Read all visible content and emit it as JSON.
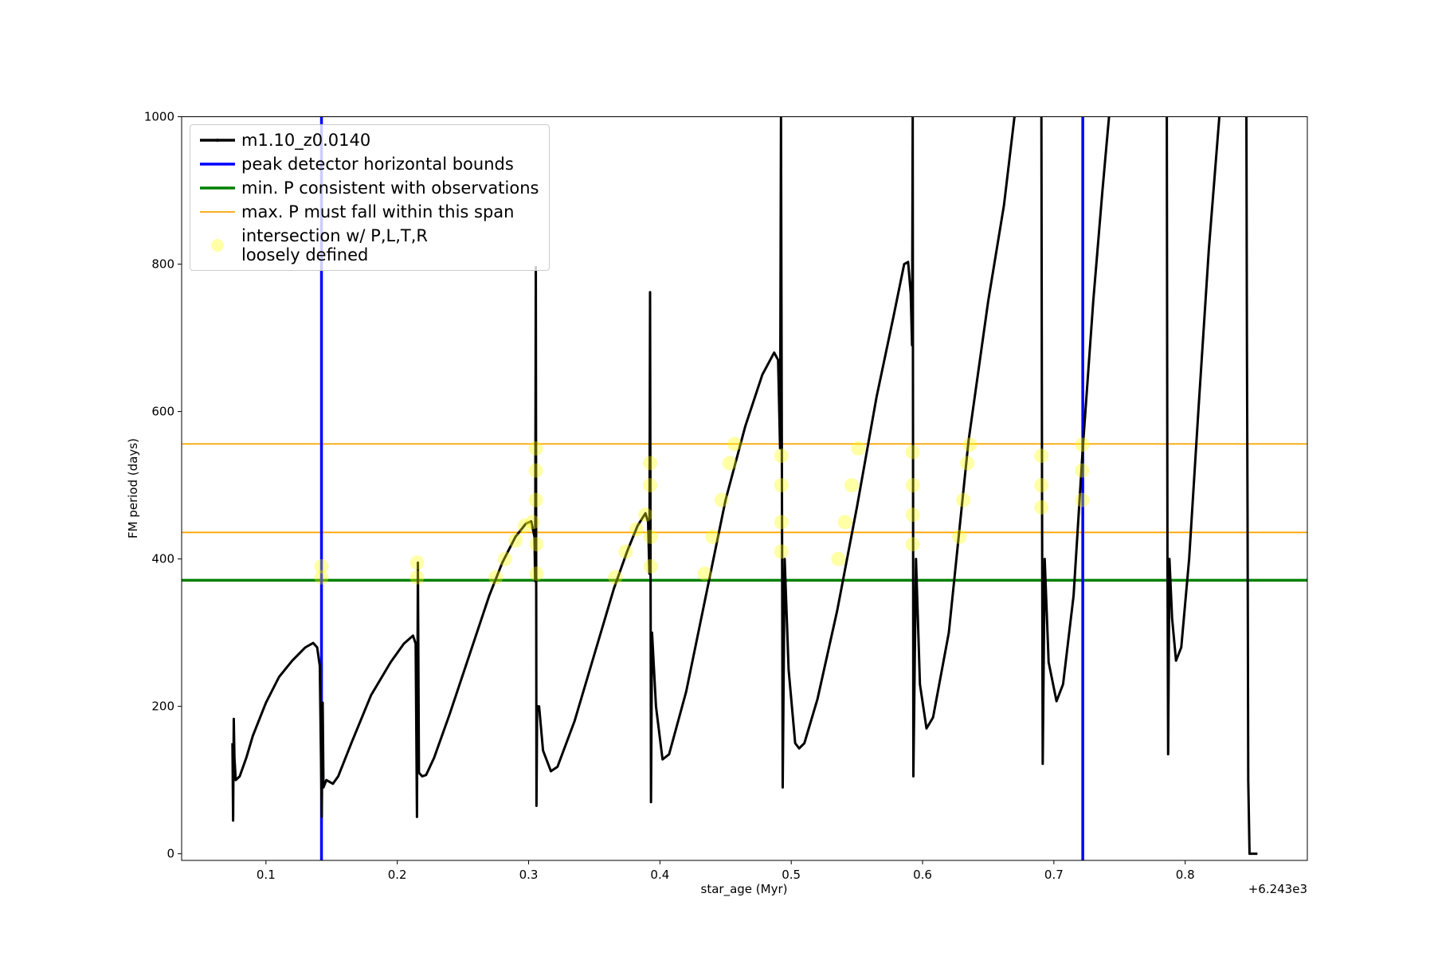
{
  "chart_data": {
    "type": "line",
    "xlabel": "star_age (Myr)",
    "ylabel": "FM period (days)",
    "x_offset_label": "+6.243e3",
    "xlim": [
      0.0358,
      0.893
    ],
    "ylim": [
      -9,
      1000
    ],
    "xticks": [
      0.1,
      0.2,
      0.3,
      0.4,
      0.5,
      0.6,
      0.7,
      0.8
    ],
    "yticks": [
      0,
      200,
      400,
      600,
      800,
      1000
    ],
    "legend": "upper left",
    "series": [
      {
        "name": "m1.10_z0.0140",
        "kind": "line",
        "color": "#000000",
        "x": [
          0.0745,
          0.075,
          0.0755,
          0.076,
          0.077,
          0.08,
          0.085,
          0.09,
          0.1,
          0.11,
          0.12,
          0.13,
          0.136,
          0.139,
          0.141,
          0.142,
          0.1425,
          0.1432,
          0.1438,
          0.146,
          0.151,
          0.155,
          0.165,
          0.18,
          0.195,
          0.205,
          0.212,
          0.214,
          0.215,
          0.2157,
          0.2165,
          0.219,
          0.222,
          0.228,
          0.24,
          0.255,
          0.27,
          0.28,
          0.29,
          0.298,
          0.302,
          0.3045,
          0.305,
          0.3055,
          0.306,
          0.3065,
          0.308,
          0.311,
          0.317,
          0.322,
          0.335,
          0.35,
          0.365,
          0.375,
          0.383,
          0.389,
          0.391,
          0.392,
          0.3925,
          0.3932,
          0.394,
          0.397,
          0.402,
          0.407,
          0.42,
          0.435,
          0.45,
          0.465,
          0.478,
          0.487,
          0.49,
          0.4915,
          0.4922,
          0.4935,
          0.495,
          0.498,
          0.503,
          0.506,
          0.51,
          0.52,
          0.535,
          0.55,
          0.565,
          0.578,
          0.586,
          0.589,
          0.591,
          0.592,
          0.5925,
          0.593,
          0.595,
          0.598,
          0.603,
          0.608,
          0.62,
          0.635,
          0.65,
          0.662,
          0.67,
          0.68,
          0.6905,
          0.691,
          0.6915,
          0.693,
          0.696,
          0.702,
          0.707,
          0.715,
          0.722,
          0.73,
          0.737,
          0.742,
          0.764,
          0.786,
          0.7865,
          0.787,
          0.788,
          0.79,
          0.793,
          0.797,
          0.803,
          0.81,
          0.818,
          0.826,
          0.836,
          0.8466,
          0.847,
          0.8475,
          0.848,
          0.849,
          0.852,
          0.855
        ],
        "values": [
          150,
          45,
          183,
          130,
          100,
          105,
          130,
          160,
          205,
          240,
          262,
          280,
          286,
          280,
          255,
          120,
          50,
          205,
          90,
          100,
          95,
          105,
          150,
          215,
          260,
          285,
          296,
          285,
          50,
          395,
          110,
          105,
          107,
          130,
          190,
          270,
          350,
          395,
          430,
          448,
          451,
          430,
          370,
          796,
          65,
          200,
          200,
          140,
          112,
          118,
          180,
          270,
          360,
          410,
          445,
          462,
          450,
          380,
          762,
          70,
          300,
          200,
          128,
          135,
          220,
          350,
          480,
          580,
          650,
          680,
          670,
          550,
          1000,
          90,
          400,
          250,
          150,
          143,
          150,
          210,
          330,
          470,
          620,
          730,
          800,
          803,
          760,
          690,
          1000,
          105,
          400,
          230,
          170,
          185,
          300,
          560,
          750,
          880,
          1000,
          null,
          1000,
          470,
          122,
          400,
          260,
          207,
          230,
          350,
          550,
          750,
          900,
          1000,
          null,
          1000,
          400,
          135,
          400,
          320,
          262,
          280,
          400,
          600,
          820,
          1000,
          null,
          1000,
          700,
          450,
          100,
          0,
          0,
          0
        ]
      },
      {
        "name": "peak detector horizontal bounds",
        "kind": "vline",
        "color": "#0000ff",
        "x": [
          0.1423,
          0.722
        ]
      },
      {
        "name": "min. P consistent with observations",
        "kind": "hline",
        "color": "#008000",
        "values": [
          371
        ]
      },
      {
        "name": "max. P must fall within this span",
        "kind": "hline",
        "color": "#ffa500",
        "values": [
          436,
          556
        ]
      },
      {
        "name": "intersection w/ P,L,T,R\nloosely defined",
        "kind": "scatter",
        "color": "#ffff00",
        "alpha": 0.35,
        "x": [
          0.1423,
          0.1423,
          0.215,
          0.215,
          0.275,
          0.282,
          0.29,
          0.297,
          0.303,
          0.306,
          0.306,
          0.3055,
          0.3055,
          0.3055,
          0.366,
          0.374,
          0.382,
          0.389,
          0.393,
          0.393,
          0.3925,
          0.3925,
          0.434,
          0.44,
          0.447,
          0.453,
          0.457,
          0.4925,
          0.4925,
          0.4925,
          0.4925,
          0.536,
          0.541,
          0.546,
          0.551,
          0.5925,
          0.5925,
          0.5925,
          0.5925,
          0.628,
          0.631,
          0.634,
          0.636,
          0.6905,
          0.6905,
          0.6905,
          0.7215,
          0.7215,
          0.7215
        ],
        "values": [
          375,
          390,
          375,
          395,
          375,
          400,
          425,
          445,
          450,
          420,
          380,
          480,
          520,
          550,
          375,
          410,
          440,
          460,
          430,
          390,
          500,
          530,
          380,
          430,
          480,
          530,
          556,
          410,
          450,
          500,
          540,
          400,
          450,
          500,
          550,
          420,
          460,
          500,
          545,
          430,
          480,
          530,
          555,
          470,
          500,
          540,
          480,
          520,
          555
        ]
      }
    ]
  }
}
